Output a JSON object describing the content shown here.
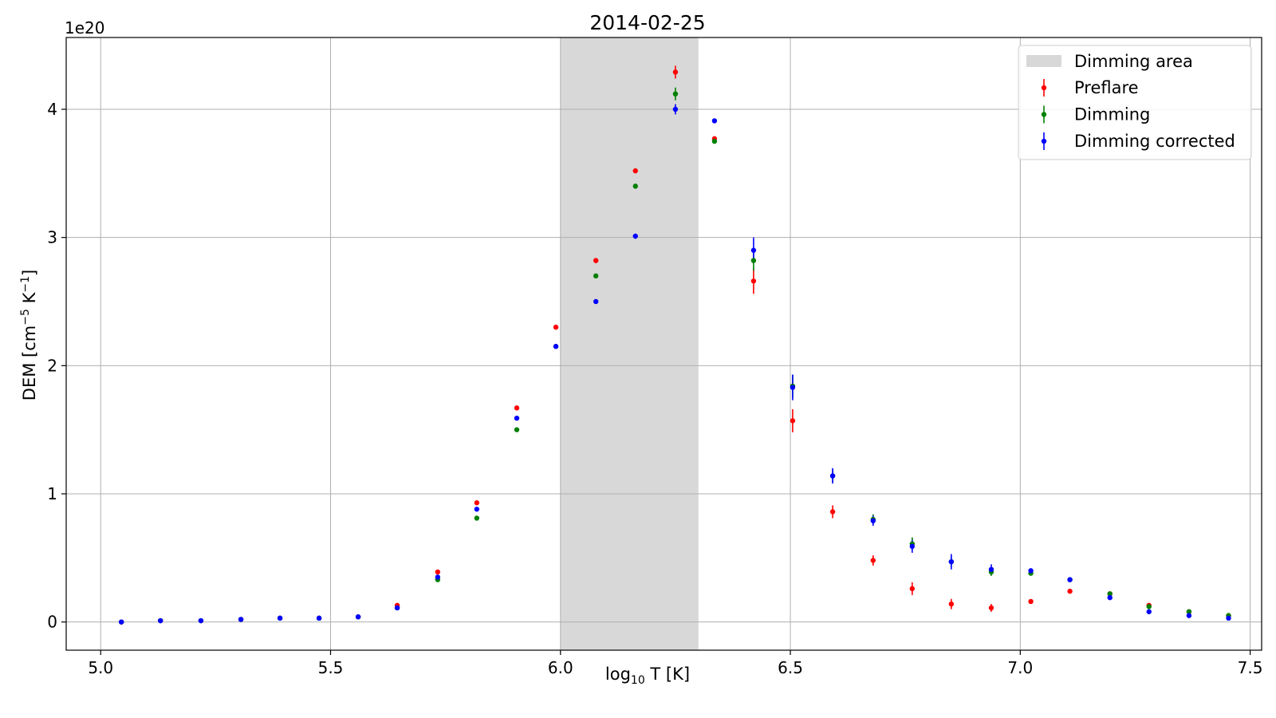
{
  "chart_data": {
    "type": "scatter",
    "title": "2014-02-25",
    "xlabel_main": "log",
    "xlabel_sub": "10",
    "xlabel_rest": " T [K]",
    "ylabel_main": "DEM [cm",
    "ylabel_sup1": "−5",
    "ylabel_mid": " K",
    "ylabel_sup2": "−1",
    "ylabel_end": "]",
    "y_offset_label": "1e20",
    "xlim": [
      4.925,
      7.525
    ],
    "ylim": [
      -0.22,
      4.56
    ],
    "xticks": [
      5.0,
      5.5,
      6.0,
      6.5,
      7.0,
      7.5
    ],
    "xtick_labels": [
      "5.0",
      "5.5",
      "6.0",
      "6.5",
      "7.0",
      "7.5"
    ],
    "yticks": [
      0,
      1,
      2,
      3,
      4
    ],
    "ytick_labels": [
      "0",
      "1",
      "2",
      "3",
      "4"
    ],
    "grid": true,
    "legend_position": "top-right",
    "shaded_region": {
      "name": "Dimming area",
      "x0": 6.0,
      "x1": 6.3,
      "color": "#d8d8d8"
    },
    "x": [
      5.045,
      5.13,
      5.218,
      5.305,
      5.39,
      5.475,
      5.56,
      5.645,
      5.733,
      5.818,
      5.905,
      5.99,
      6.077,
      6.163,
      6.25,
      6.335,
      6.42,
      6.505,
      6.592,
      6.68,
      6.765,
      6.85,
      6.937,
      7.023,
      7.108,
      7.195,
      7.28,
      7.367,
      7.453
    ],
    "series": [
      {
        "name": "Preflare",
        "color": "#ff0000",
        "values": [
          0.0,
          0.01,
          0.01,
          0.02,
          0.03,
          0.03,
          0.04,
          0.13,
          0.39,
          0.93,
          1.67,
          2.3,
          2.82,
          3.52,
          4.29,
          3.77,
          2.66,
          1.57,
          0.86,
          0.48,
          0.26,
          0.14,
          0.11,
          0.16,
          0.24,
          0.22,
          0.13,
          0.08,
          0.05
        ],
        "errors": [
          0.0,
          0.0,
          0.0,
          0.0,
          0.0,
          0.0,
          0.0,
          0.01,
          0.01,
          0.01,
          0.01,
          0.01,
          0.02,
          0.02,
          0.05,
          0.02,
          0.1,
          0.09,
          0.05,
          0.04,
          0.05,
          0.04,
          0.03,
          0.01,
          0.01,
          0.01,
          0.01,
          0.01,
          0.01
        ]
      },
      {
        "name": "Dimming",
        "color": "#008000",
        "values": [
          0.0,
          0.01,
          0.01,
          0.02,
          0.03,
          0.03,
          0.04,
          0.11,
          0.33,
          0.81,
          1.5,
          2.15,
          2.7,
          3.4,
          4.12,
          3.75,
          2.82,
          1.84,
          1.14,
          0.8,
          0.61,
          0.47,
          0.39,
          0.38,
          0.33,
          0.22,
          0.12,
          0.08,
          0.05
        ],
        "errors": [
          0.0,
          0.0,
          0.0,
          0.0,
          0.0,
          0.0,
          0.0,
          0.01,
          0.01,
          0.01,
          0.01,
          0.01,
          0.01,
          0.02,
          0.05,
          0.01,
          0.08,
          0.09,
          0.05,
          0.04,
          0.05,
          0.04,
          0.03,
          0.01,
          0.01,
          0.01,
          0.01,
          0.01,
          0.01
        ]
      },
      {
        "name": "Dimming corrected",
        "color": "#0000ff",
        "values": [
          0.0,
          0.01,
          0.01,
          0.02,
          0.03,
          0.03,
          0.04,
          0.11,
          0.35,
          0.88,
          1.59,
          2.15,
          2.5,
          3.01,
          4.0,
          3.91,
          2.9,
          1.83,
          1.14,
          0.79,
          0.59,
          0.47,
          0.41,
          0.4,
          0.33,
          0.19,
          0.08,
          0.05,
          0.03
        ],
        "errors": [
          0.0,
          0.0,
          0.0,
          0.0,
          0.0,
          0.0,
          0.0,
          0.01,
          0.01,
          0.01,
          0.01,
          0.01,
          0.01,
          0.02,
          0.04,
          0.01,
          0.1,
          0.1,
          0.06,
          0.04,
          0.05,
          0.06,
          0.04,
          0.01,
          0.01,
          0.01,
          0.01,
          0.01,
          0.01
        ]
      }
    ]
  }
}
